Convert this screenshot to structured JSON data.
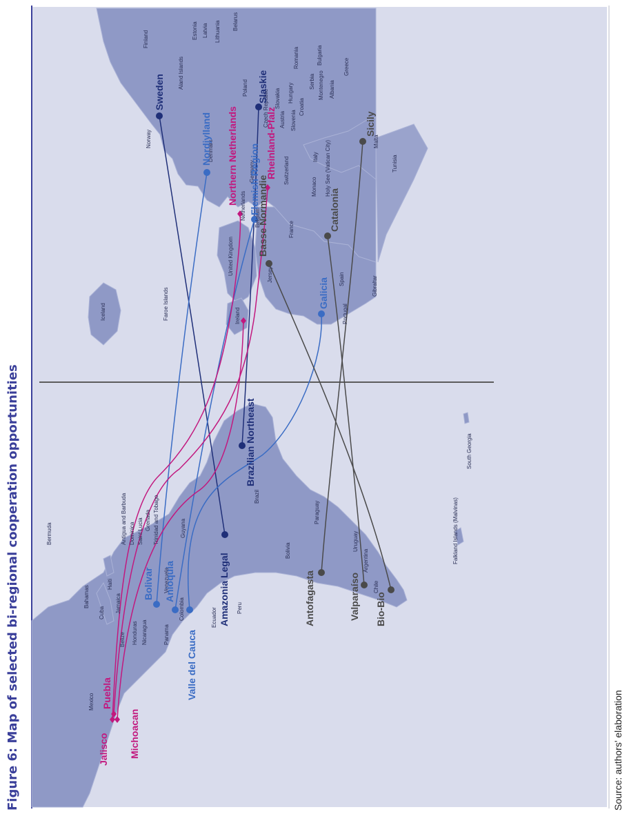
{
  "title": "Figure 6: Map of selected bi-regional cooperation opportunities",
  "source": "Source: authors' elaboration",
  "colors": {
    "page_bg": "#ffffff",
    "map_bg": "#d9dcec",
    "land": "#8f99c6",
    "land_border": "#aab2d6",
    "dark_blue": "#1f2f78",
    "mid_blue": "#3a6cc4",
    "magenta": "#c2187e",
    "grey": "#4a4a4a",
    "divider": "#5c5c5c",
    "title": "#3a3f9a"
  },
  "countries": [
    "Finland",
    "Estonia",
    "Latvia",
    "Lithuania",
    "Belarus",
    "Romania",
    "Bulgaria",
    "Greece",
    "Aland Islands",
    "Poland",
    "Slovakia",
    "Hungary",
    "Serbia",
    "Montenegro",
    "Albania",
    "Czech Republic",
    "Austria",
    "Croatia",
    "Slovenia",
    "Norway",
    "Denmark",
    "Germany",
    "Netherlands",
    "Belgium",
    "Switzerland",
    "Italy",
    "Holy See (Vatican City)",
    "Malta",
    "Tunisia",
    "Monaco",
    "France",
    "United Kingdom",
    "Jersey",
    "Spain",
    "Gibraltar",
    "Portugal",
    "Ireland",
    "Faroe Islands",
    "Iceland",
    "Bermuda",
    "Bahamas",
    "Cuba",
    "Haiti",
    "Jamaica",
    "Antigua and Barbuda",
    "Dominica",
    "Saint Lucia",
    "Grenada",
    "Trinidad and Tobago",
    "Mexico",
    "Belize",
    "Honduras",
    "Nicaragua",
    "Panama",
    "Venezuela",
    "Guyana",
    "Colombia",
    "Ecuador",
    "Peru",
    "Brazil",
    "Bolivia",
    "Paraguay",
    "Uruguay",
    "Chile",
    "Argentina",
    "Falkland Islands (Malvinas)",
    "South Georgia"
  ],
  "regions": {
    "europe": [
      {
        "name": "Sweden",
        "color": "dark_blue"
      },
      {
        "name": "Nordjylland",
        "color": "mid_blue"
      },
      {
        "name": "Northern Netherlands",
        "color": "magenta"
      },
      {
        "name": "Slaskie",
        "color": "dark_blue"
      },
      {
        "name": "Flemish Region",
        "color": "mid_blue"
      },
      {
        "name": "Rheinland-Pfalz",
        "color": "magenta"
      },
      {
        "name": "Sicily",
        "color": "grey"
      },
      {
        "name": "Catalonia",
        "color": "grey"
      },
      {
        "name": "Basse Normandie",
        "color": "grey"
      },
      {
        "name": "Galicia",
        "color": "mid_blue"
      }
    ],
    "latam": [
      {
        "name": "Jalisco",
        "color": "magenta"
      },
      {
        "name": "Puebla",
        "color": "magenta"
      },
      {
        "name": "Michoacan",
        "color": "magenta"
      },
      {
        "name": "Bolivar",
        "color": "mid_blue"
      },
      {
        "name": "Anioquia",
        "color": "mid_blue"
      },
      {
        "name": "Valle del Cauca",
        "color": "mid_blue"
      },
      {
        "name": "Amazonia Legal",
        "color": "dark_blue"
      },
      {
        "name": "Brazilian Northeast",
        "color": "dark_blue"
      },
      {
        "name": "Antofagasta",
        "color": "grey"
      },
      {
        "name": "Valparaíso",
        "color": "grey"
      },
      {
        "name": "Bio-Bio",
        "color": "grey"
      }
    ]
  },
  "connections": [
    {
      "from": "Amazonia Legal",
      "to": "Sweden",
      "color": "dark_blue"
    },
    {
      "from": "Brazilian Northeast",
      "to": "Slaskie",
      "color": "dark_blue"
    },
    {
      "from": "Bolivar",
      "to": "Nordjylland",
      "color": "mid_blue"
    },
    {
      "from": "Anioquia",
      "to": "Flemish Region",
      "color": "mid_blue"
    },
    {
      "from": "Valle del Cauca",
      "to": "Galicia",
      "color": "mid_blue"
    },
    {
      "from": "Jalisco",
      "to": "Northern Netherlands",
      "color": "magenta"
    },
    {
      "from": "Puebla",
      "to": "Rheinland-Pfalz",
      "color": "magenta"
    },
    {
      "from": "Michoacan",
      "to": "Ireland",
      "color": "magenta"
    },
    {
      "from": "Antofagasta",
      "to": "Sicily",
      "color": "grey"
    },
    {
      "from": "Valparaíso",
      "to": "Catalonia",
      "color": "grey"
    },
    {
      "from": "Bio-Bio",
      "to": "Basse Normandie",
      "color": "grey"
    }
  ]
}
